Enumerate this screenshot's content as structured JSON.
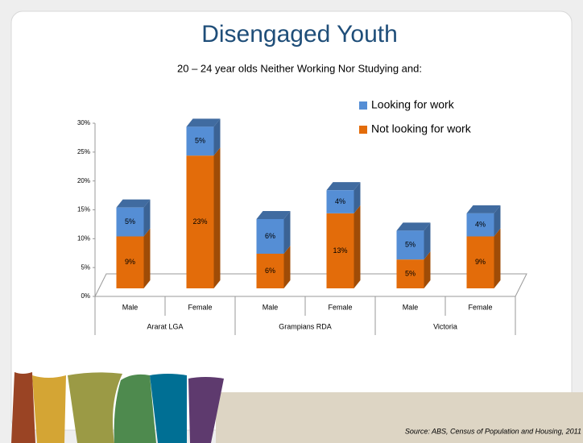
{
  "chart_data": {
    "type": "bar",
    "stacked": true,
    "title": "Disengaged Youth",
    "subtitle": "20 – 24 year olds Neither Working Nor Studying and:",
    "source": "Source: ABS, Census of Population and Housing, 2011",
    "categories": [
      "Male",
      "Female",
      "Male",
      "Female",
      "Male",
      "Female"
    ],
    "group_labels": [
      "Ararat LGA",
      "Grampians RDA",
      "Victoria"
    ],
    "series": [
      {
        "name": "Not looking for work",
        "color": "#e36c0a",
        "values": [
          9,
          23,
          6,
          13,
          5,
          9
        ],
        "value_labels": [
          "9%",
          "23%",
          "6%",
          "13%",
          "5%",
          "9%"
        ]
      },
      {
        "name": "Looking for work",
        "color": "#558ed5",
        "values": [
          5,
          5,
          6,
          4,
          5,
          4
        ],
        "value_labels": [
          "5%",
          "5%",
          "6%",
          "4%",
          "5%",
          "4%"
        ]
      }
    ],
    "ylim": [
      0,
      30
    ],
    "yticks": [
      {
        "value": 0,
        "label": "0%"
      },
      {
        "value": 5,
        "label": "5%"
      },
      {
        "value": 10,
        "label": "10%"
      },
      {
        "value": 15,
        "label": "15%"
      },
      {
        "value": 20,
        "label": "20%"
      },
      {
        "value": 25,
        "label": "25%"
      },
      {
        "value": 30,
        "label": "30%"
      }
    ],
    "legend": "top-right"
  }
}
